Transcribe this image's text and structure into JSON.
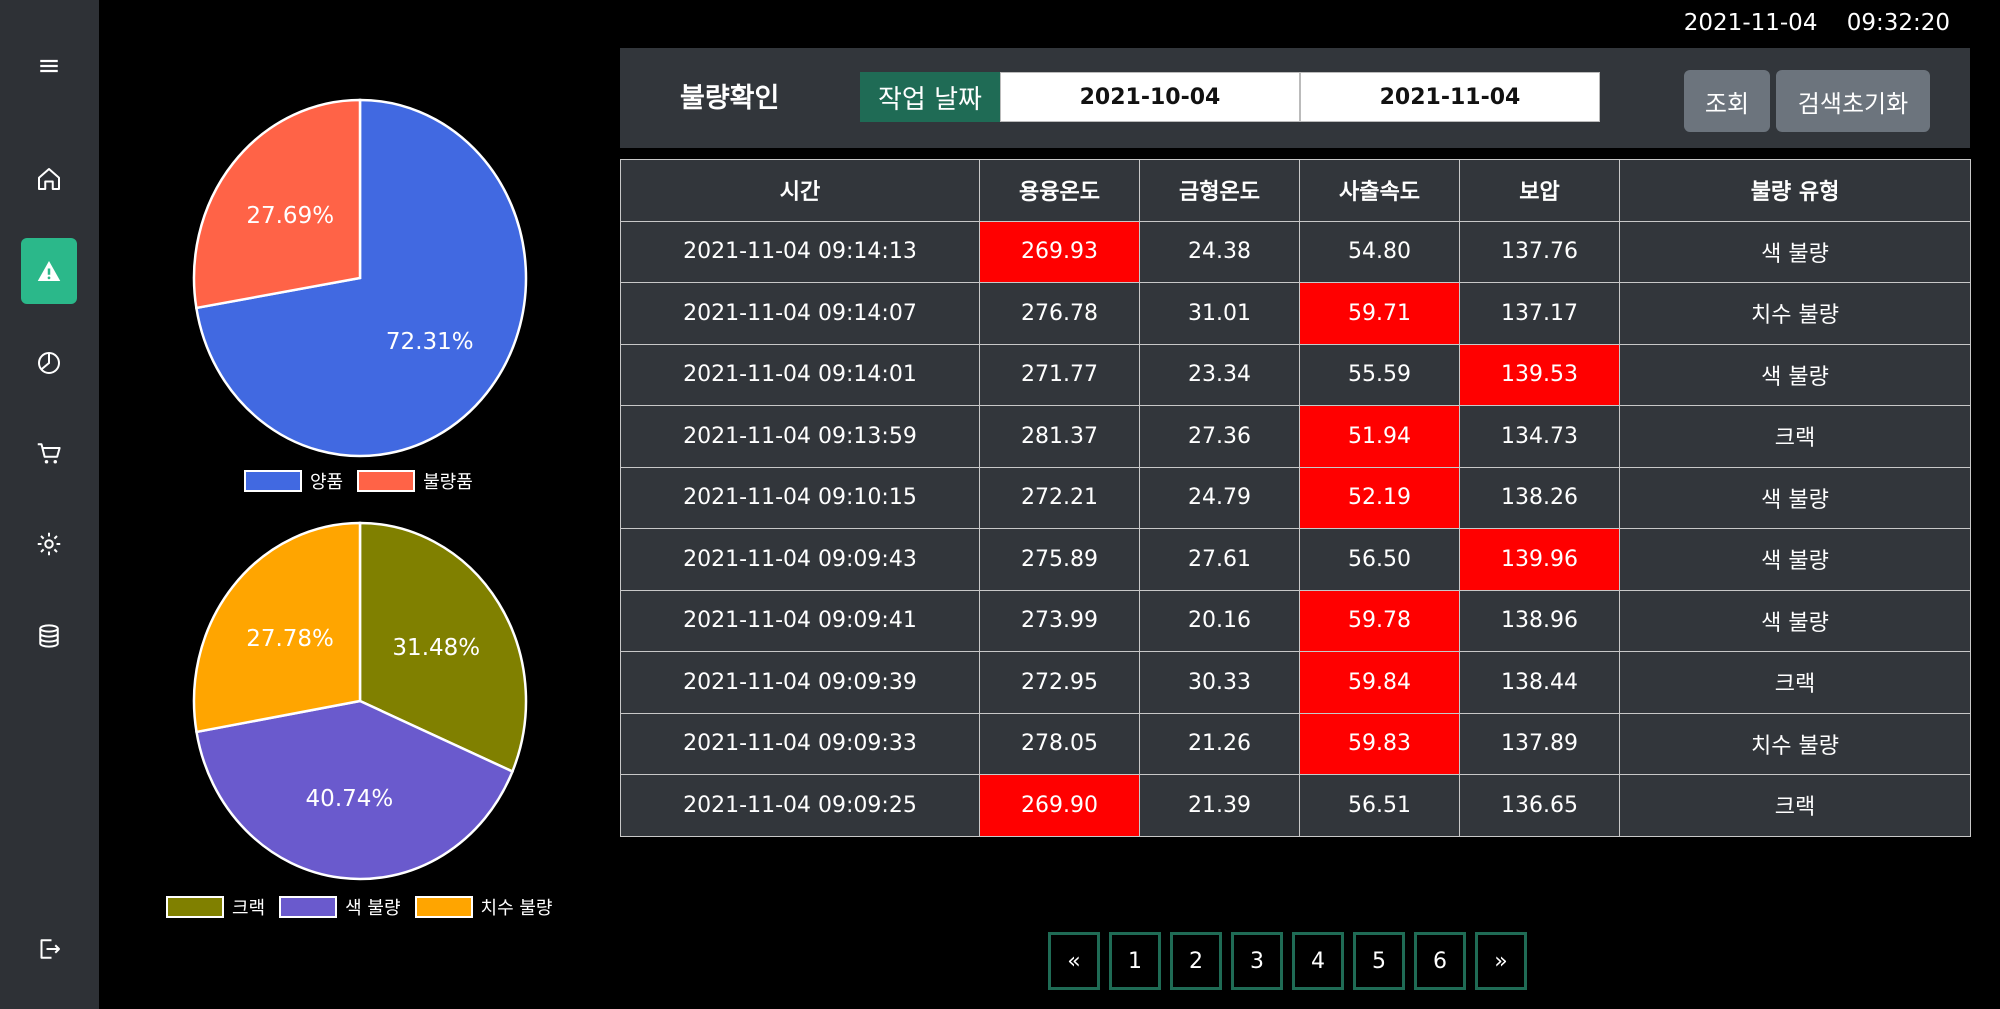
{
  "clock": "2021-11-04    09:32:20",
  "sidebar": {
    "items": [
      {
        "name": "menu"
      },
      {
        "name": "home"
      },
      {
        "name": "alert",
        "active": true
      },
      {
        "name": "chart"
      },
      {
        "name": "cart"
      },
      {
        "name": "settings"
      },
      {
        "name": "database"
      },
      {
        "name": "logout"
      }
    ]
  },
  "search": {
    "title": "불량확인",
    "date_label": "작업 날짜",
    "start_date": "2021-10-04",
    "end_date": "2021-11-04",
    "search_button": "조회",
    "reset_button": "검색초기화"
  },
  "table": {
    "headers": [
      "시간",
      "용융온도",
      "금형온도",
      "사출속도",
      "보압",
      "불량 유형"
    ],
    "rows": [
      [
        "2021-11-04 09:14:13",
        "269.93",
        "24.38",
        "54.80",
        "137.76",
        "색 불량"
      ],
      [
        "2021-11-04 09:14:07",
        "276.78",
        "31.01",
        "59.71",
        "137.17",
        "치수 불량"
      ],
      [
        "2021-11-04 09:14:01",
        "271.77",
        "23.34",
        "55.59",
        "139.53",
        "색 불량"
      ],
      [
        "2021-11-04 09:13:59",
        "281.37",
        "27.36",
        "51.94",
        "134.73",
        "크랙"
      ],
      [
        "2021-11-04 09:10:15",
        "272.21",
        "24.79",
        "52.19",
        "138.26",
        "색 불량"
      ],
      [
        "2021-11-04 09:09:43",
        "275.89",
        "27.61",
        "56.50",
        "139.96",
        "색 불량"
      ],
      [
        "2021-11-04 09:09:41",
        "273.99",
        "20.16",
        "59.78",
        "138.96",
        "색 불량"
      ],
      [
        "2021-11-04 09:09:39",
        "272.95",
        "30.33",
        "59.84",
        "138.44",
        "크랙"
      ],
      [
        "2021-11-04 09:09:33",
        "278.05",
        "21.26",
        "59.83",
        "137.89",
        "치수 불량"
      ],
      [
        "2021-11-04 09:09:25",
        "269.90",
        "21.39",
        "56.51",
        "136.65",
        "크랙"
      ]
    ],
    "highlighted": [
      [
        0,
        1
      ],
      [
        1,
        3
      ],
      [
        2,
        4
      ],
      [
        3,
        3
      ],
      [
        4,
        3
      ],
      [
        5,
        4
      ],
      [
        6,
        3
      ],
      [
        7,
        3
      ],
      [
        8,
        3
      ],
      [
        9,
        1
      ]
    ],
    "highlight_color": "#ff0000"
  },
  "pagination": [
    "«",
    "1",
    "2",
    "3",
    "4",
    "5",
    "6",
    "»"
  ],
  "chart_data": [
    {
      "type": "pie",
      "labels": [
        "양품",
        "불량품"
      ],
      "values": [
        72.31,
        27.69
      ],
      "value_labels": [
        "72.31%",
        "27.69%"
      ],
      "colors": [
        "#4169e1",
        "#ff6347"
      ],
      "legend": "bottom"
    },
    {
      "type": "pie",
      "labels": [
        "크랙",
        "색 불량",
        "치수 불량"
      ],
      "values": [
        31.48,
        40.74,
        27.78
      ],
      "value_labels": [
        "31.48%",
        "40.74%",
        "27.78%"
      ],
      "colors": [
        "#808000",
        "#6a5acd",
        "#ffa500"
      ],
      "legend": "bottom"
    }
  ]
}
